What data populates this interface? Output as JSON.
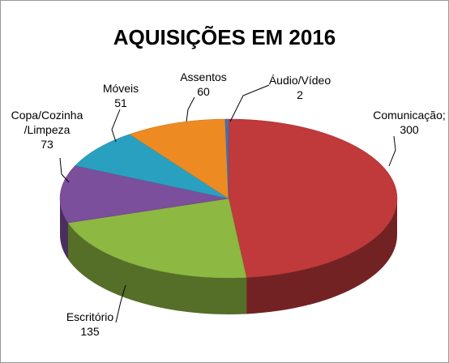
{
  "chart_data": {
    "type": "pie3d",
    "title": "AQUISIÇÕES EM 2016",
    "categories": [
      "Comunicação;",
      "Escritório",
      "Copa/Cozinha/Limpeza",
      "Móveis",
      "Assentos",
      "Áudio/Vídeo"
    ],
    "values": [
      300,
      135,
      73,
      51,
      60,
      2
    ],
    "colors": [
      "#c0393b",
      "#8db842",
      "#7b4f9b",
      "#2aa0c0",
      "#ee8a22",
      "#4a6fb0"
    ]
  }
}
